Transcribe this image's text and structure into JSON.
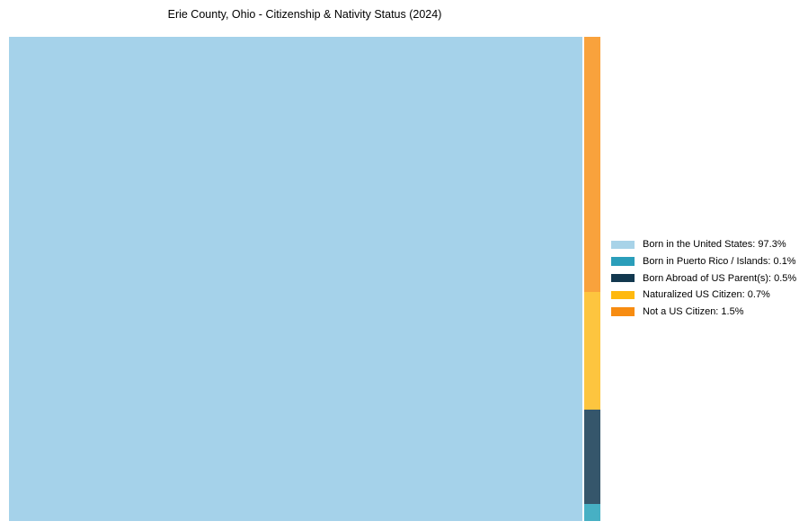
{
  "title": "Erie County, Ohio - Citizenship & Nativity Status (2024)",
  "colors": {
    "background": "#ffffff",
    "title_text": "#000000",
    "legend_text": "#000000"
  },
  "chart_data": {
    "type": "treemap",
    "title": "Erie County, Ohio - Citizenship & Nativity Status (2024)",
    "unit": "%",
    "legend_position": "right-center",
    "grid": false,
    "series": [
      {
        "name": "Born in the United States",
        "value": 97.3,
        "label": "Born in the United States: 97.3%",
        "legend_color": "#A8D3E8",
        "map_color": "#A5D2EA"
      },
      {
        "name": "Born in Puerto Rico / Islands",
        "value": 0.1,
        "label": "Born in Puerto Rico / Islands: 0.1%",
        "legend_color": "#2A9EBA",
        "map_color": "#47B0C4"
      },
      {
        "name": "Born Abroad of US Parent(s)",
        "value": 0.5,
        "label": "Born Abroad of US Parent(s): 0.5%",
        "legend_color": "#12384F",
        "map_color": "#35566B"
      },
      {
        "name": "Naturalized US Citizen",
        "value": 0.7,
        "label": "Naturalized US Citizen: 0.7%",
        "legend_color": "#FFB90F",
        "map_color": "#FDC53F"
      },
      {
        "name": "Not a US Citizen",
        "value": 1.5,
        "label": "Not a US Citizen: 1.5%",
        "legend_color": "#F78C11",
        "map_color": "#F9A23C"
      }
    ]
  }
}
